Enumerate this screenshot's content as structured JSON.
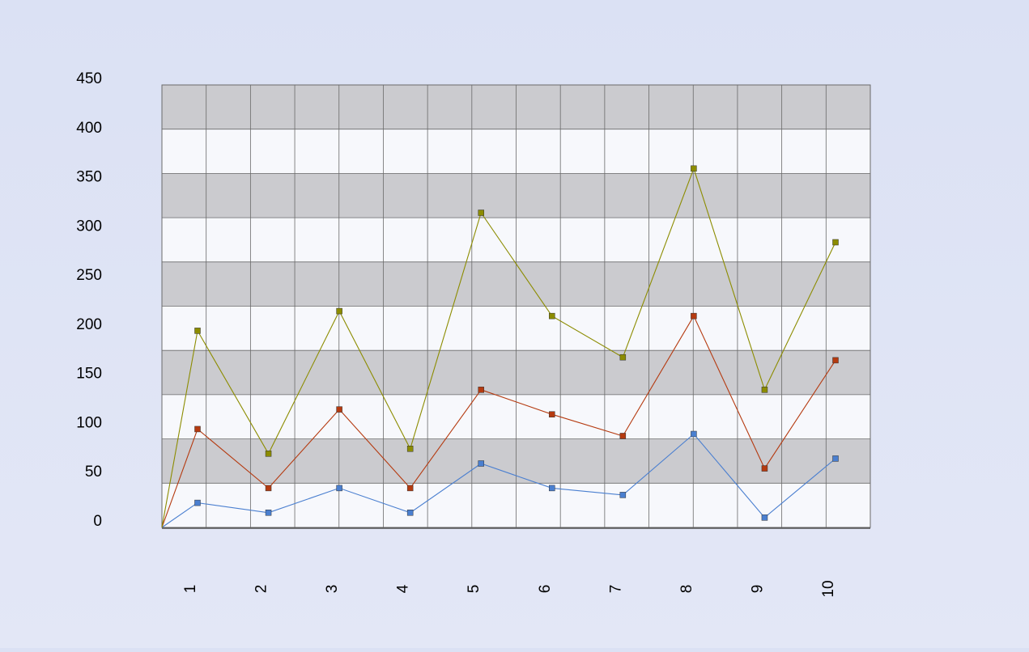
{
  "chart_data": {
    "type": "line",
    "title": "",
    "xlabel": "",
    "ylabel": "",
    "categories": [
      "1",
      "2",
      "3",
      "4",
      "5",
      "6",
      "7",
      "8",
      "9",
      "10"
    ],
    "ylim": [
      0,
      450
    ],
    "yticks": [
      0,
      50,
      100,
      150,
      200,
      250,
      300,
      350,
      400,
      450
    ],
    "grid": true,
    "legend": "none",
    "series": [
      {
        "color": "#4a7fd0",
        "start": 0,
        "values": [
          25,
          15,
          40,
          15,
          65,
          40,
          33,
          95,
          10,
          70
        ]
      },
      {
        "color": "#b53a10",
        "start": 0,
        "values": [
          100,
          40,
          120,
          40,
          140,
          115,
          93,
          215,
          60,
          170
        ]
      },
      {
        "color": "#8c8c00",
        "start": 0,
        "values": [
          200,
          75,
          220,
          80,
          320,
          215,
          173,
          365,
          140,
          290
        ]
      }
    ],
    "band_colors": [
      "#f7f8fc",
      "#cbcbcf"
    ]
  }
}
